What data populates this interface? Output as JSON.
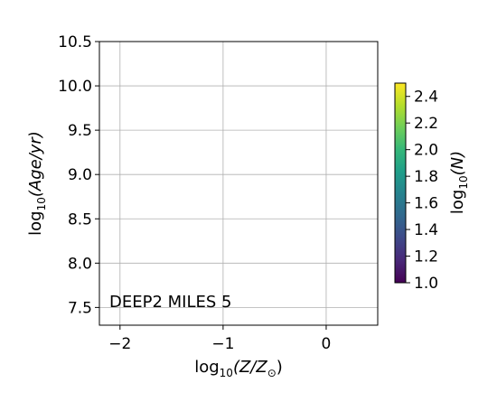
{
  "chart_data": {
    "type": "heatmap",
    "title": "",
    "xlabel": {
      "base": "log",
      "sub": "10",
      "body": "(Z/Z",
      "sym": "⊙",
      "close": ")"
    },
    "ylabel": {
      "base": "log",
      "sub": "10",
      "body": "(Age/yr)"
    },
    "xlim": [
      -2.2,
      0.5
    ],
    "ylim": [
      7.3,
      10.5
    ],
    "xticks": [
      -2,
      -1,
      0
    ],
    "xtick_labels": [
      "−2",
      "−1",
      "0"
    ],
    "yticks": [
      7.5,
      8.0,
      8.5,
      9.0,
      9.5,
      10.0,
      10.5
    ],
    "ytick_labels": [
      "7.5",
      "8.0",
      "8.5",
      "9.0",
      "9.5",
      "10.0",
      "10.5"
    ],
    "grid": true,
    "cells": [],
    "annotation": "DEEP2 MILES 5",
    "colorbar": {
      "label": {
        "base": "log",
        "sub": "10",
        "body": "(N)"
      },
      "colormap": "viridis",
      "range": [
        1.0,
        2.5
      ],
      "ticks": [
        1.0,
        1.2,
        1.4,
        1.6,
        1.8,
        2.0,
        2.2,
        2.4
      ],
      "tick_labels": [
        "1.0",
        "1.2",
        "1.4",
        "1.6",
        "1.8",
        "2.0",
        "2.2",
        "2.4"
      ],
      "colors": [
        "#440154",
        "#482878",
        "#3e4989",
        "#31688e",
        "#26828e",
        "#1f9e89",
        "#35b779",
        "#6ece58",
        "#b5de2b",
        "#fde725"
      ]
    }
  }
}
